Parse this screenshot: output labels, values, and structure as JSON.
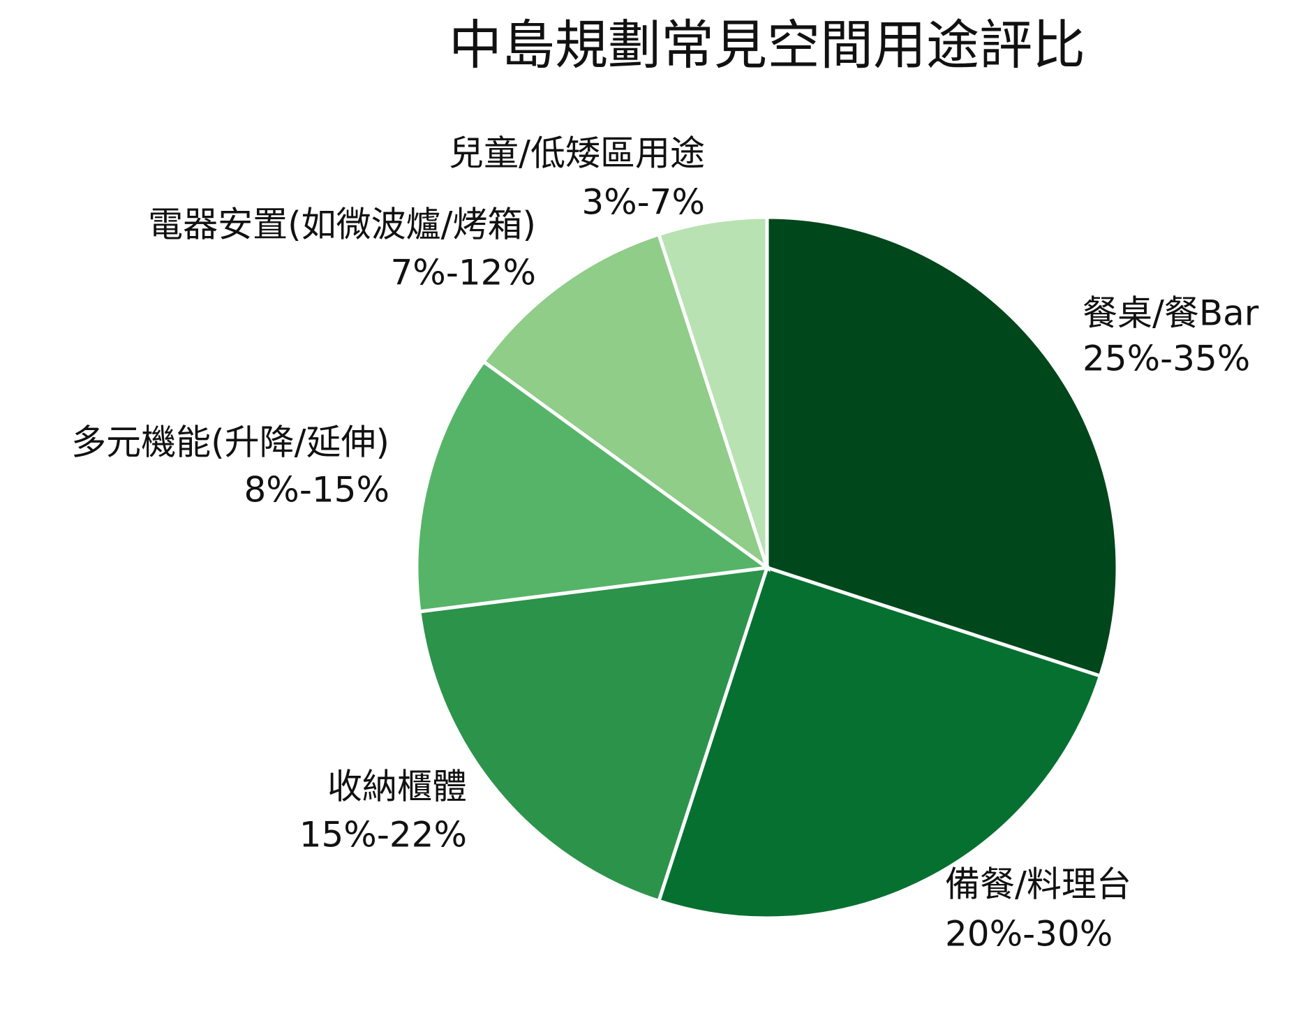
{
  "chart_data": {
    "type": "pie",
    "title": "中島規劃常見空間用途評比",
    "categories": [
      "餐桌/餐Bar",
      "備餐/料理台",
      "收納櫃體",
      "多元機能(升降/延伸)",
      "電器安置(如微波爐/烤箱)",
      "兒童/低矮區用途"
    ],
    "values": [
      30,
      25,
      18,
      12,
      10,
      5
    ],
    "range_labels": [
      "25%-35%",
      "20%-30%",
      "15%-22%",
      "8%-15%",
      "7%-12%",
      "3%-7%"
    ],
    "colors": [
      "#00471b",
      "#067030",
      "#2c934b",
      "#56b468",
      "#8fcd88",
      "#b8e2b2"
    ]
  }
}
